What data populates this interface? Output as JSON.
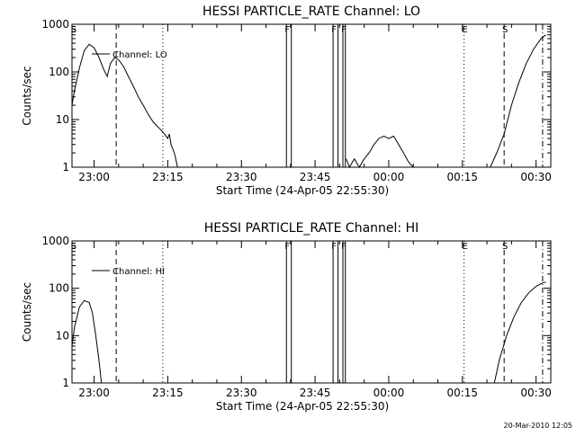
{
  "footer_timestamp": "20-Mar-2010 12:05",
  "chart_data": [
    {
      "type": "line",
      "title": "HESSI PARTICLE_RATE Channel: LO",
      "xlabel": "Start Time (24-Apr-05 22:55:30)",
      "ylabel": "Counts/sec",
      "ylog": true,
      "ylim": [
        1,
        1000
      ],
      "xlim": [
        "22:55:30",
        "00:33:00"
      ],
      "y_tick_labels": [
        "1",
        "10",
        "100",
        "1000"
      ],
      "x_tick_labels": [
        "23:00",
        "23:15",
        "23:30",
        "23:45",
        "00:00",
        "00:15",
        "00:30"
      ],
      "legend": {
        "label": "Channel: LO",
        "position": "top-left"
      },
      "markers": [
        {
          "label": "S",
          "time": "22:55:40",
          "style": "none"
        },
        {
          "label": "",
          "time": "23:04:30",
          "style": "dashed"
        },
        {
          "label": "",
          "time": "23:14:00",
          "style": "dotted"
        },
        {
          "label": "F",
          "time": "23:39:10",
          "style": "solid"
        },
        {
          "label": "",
          "time": "23:40:10",
          "style": "solid"
        },
        {
          "label": "F",
          "time": "23:48:40",
          "style": "solid"
        },
        {
          "label": "",
          "time": "23:49:40",
          "style": "solid"
        },
        {
          "label": "F",
          "time": "23:50:40",
          "style": "solid"
        },
        {
          "label": "",
          "time": "23:51:10",
          "style": "solid"
        },
        {
          "label": "E",
          "time": "00:15:20",
          "style": "dotted"
        },
        {
          "label": "S",
          "time": "00:23:30",
          "style": "dashed"
        },
        {
          "label": "",
          "time": "00:31:20",
          "style": "dashdot"
        }
      ],
      "series": [
        {
          "segments": [
            [
              [
                "22:55:30",
                20
              ],
              [
                "22:56:00",
                40
              ],
              [
                "22:57:00",
                120
              ],
              [
                "22:58:00",
                280
              ],
              [
                "22:59:00",
                380
              ],
              [
                "23:00:00",
                320
              ],
              [
                "23:01:00",
                200
              ],
              [
                "23:02:00",
                110
              ],
              [
                "23:02:40",
                80
              ],
              [
                "23:03:20",
                150
              ],
              [
                "23:04:10",
                200
              ],
              [
                "23:05:00",
                180
              ],
              [
                "23:06:00",
                130
              ],
              [
                "23:07:00",
                80
              ],
              [
                "23:08:00",
                50
              ],
              [
                "23:09:00",
                30
              ],
              [
                "23:10:00",
                20
              ],
              [
                "23:11:00",
                13
              ],
              [
                "23:12:00",
                9
              ],
              [
                "23:13:00",
                7
              ],
              [
                "23:13:40",
                6
              ],
              [
                "23:14:20",
                5
              ],
              [
                "23:15:00",
                4
              ],
              [
                "23:15:20",
                5
              ],
              [
                "23:15:40",
                3
              ],
              [
                "23:16:20",
                2
              ],
              [
                "23:17:00",
                1
              ]
            ],
            [
              [
                "23:51:20",
                1.5
              ],
              [
                "23:52:00",
                1
              ],
              [
                "23:53:00",
                1.5
              ],
              [
                "23:54:00",
                1
              ],
              [
                "23:55:00",
                1.5
              ],
              [
                "23:56:00",
                2
              ],
              [
                "23:57:00",
                3
              ],
              [
                "23:58:00",
                4
              ],
              [
                "23:59:00",
                4.5
              ],
              [
                "00:00:00",
                4
              ],
              [
                "00:01:00",
                4.5
              ],
              [
                "00:02:00",
                3
              ],
              [
                "00:03:00",
                2
              ],
              [
                "00:04:00",
                1.3
              ],
              [
                "00:05:00",
                1
              ]
            ],
            [
              [
                "00:20:40",
                1
              ],
              [
                "00:22:00",
                2
              ],
              [
                "00:23:30",
                5
              ],
              [
                "00:25:00",
                20
              ],
              [
                "00:26:30",
                60
              ],
              [
                "00:28:00",
                150
              ],
              [
                "00:29:30",
                300
              ],
              [
                "00:31:00",
                500
              ],
              [
                "00:32:00",
                600
              ]
            ]
          ]
        }
      ]
    },
    {
      "type": "line",
      "title": "HESSI PARTICLE_RATE Channel: HI",
      "xlabel": "Start Time (24-Apr-05 22:55:30)",
      "ylabel": "Counts/sec",
      "ylog": true,
      "ylim": [
        1,
        1000
      ],
      "xlim": [
        "22:55:30",
        "00:33:00"
      ],
      "y_tick_labels": [
        "1",
        "10",
        "100",
        "1000"
      ],
      "x_tick_labels": [
        "23:00",
        "23:15",
        "23:30",
        "23:45",
        "00:00",
        "00:15",
        "00:30"
      ],
      "legend": {
        "label": "Channel: HI",
        "position": "top-left"
      },
      "markers": [
        {
          "label": "S",
          "time": "22:55:40",
          "style": "none"
        },
        {
          "label": "",
          "time": "23:04:30",
          "style": "dashed"
        },
        {
          "label": "",
          "time": "23:14:00",
          "style": "dotted"
        },
        {
          "label": "F",
          "time": "23:39:10",
          "style": "solid"
        },
        {
          "label": "",
          "time": "23:40:10",
          "style": "solid"
        },
        {
          "label": "F",
          "time": "23:48:40",
          "style": "solid"
        },
        {
          "label": "",
          "time": "23:49:40",
          "style": "solid"
        },
        {
          "label": "F",
          "time": "23:50:40",
          "style": "solid"
        },
        {
          "label": "",
          "time": "23:51:10",
          "style": "solid"
        },
        {
          "label": "E",
          "time": "00:15:20",
          "style": "dotted"
        },
        {
          "label": "S",
          "time": "00:23:30",
          "style": "dashed"
        },
        {
          "label": "",
          "time": "00:31:20",
          "style": "dashdot"
        }
      ],
      "series": [
        {
          "segments": [
            [
              [
                "22:55:30",
                6
              ],
              [
                "22:56:00",
                15
              ],
              [
                "22:57:00",
                40
              ],
              [
                "22:58:00",
                55
              ],
              [
                "22:59:00",
                50
              ],
              [
                "22:59:40",
                30
              ],
              [
                "23:00:20",
                10
              ],
              [
                "23:01:00",
                3
              ],
              [
                "23:01:30",
                1
              ]
            ],
            [
              [
                "00:21:30",
                1
              ],
              [
                "00:22:30",
                3
              ],
              [
                "00:24:00",
                10
              ],
              [
                "00:25:30",
                25
              ],
              [
                "00:27:00",
                50
              ],
              [
                "00:28:30",
                80
              ],
              [
                "00:30:00",
                110
              ],
              [
                "00:31:20",
                130
              ],
              [
                "00:32:00",
                135
              ]
            ]
          ]
        }
      ]
    }
  ]
}
